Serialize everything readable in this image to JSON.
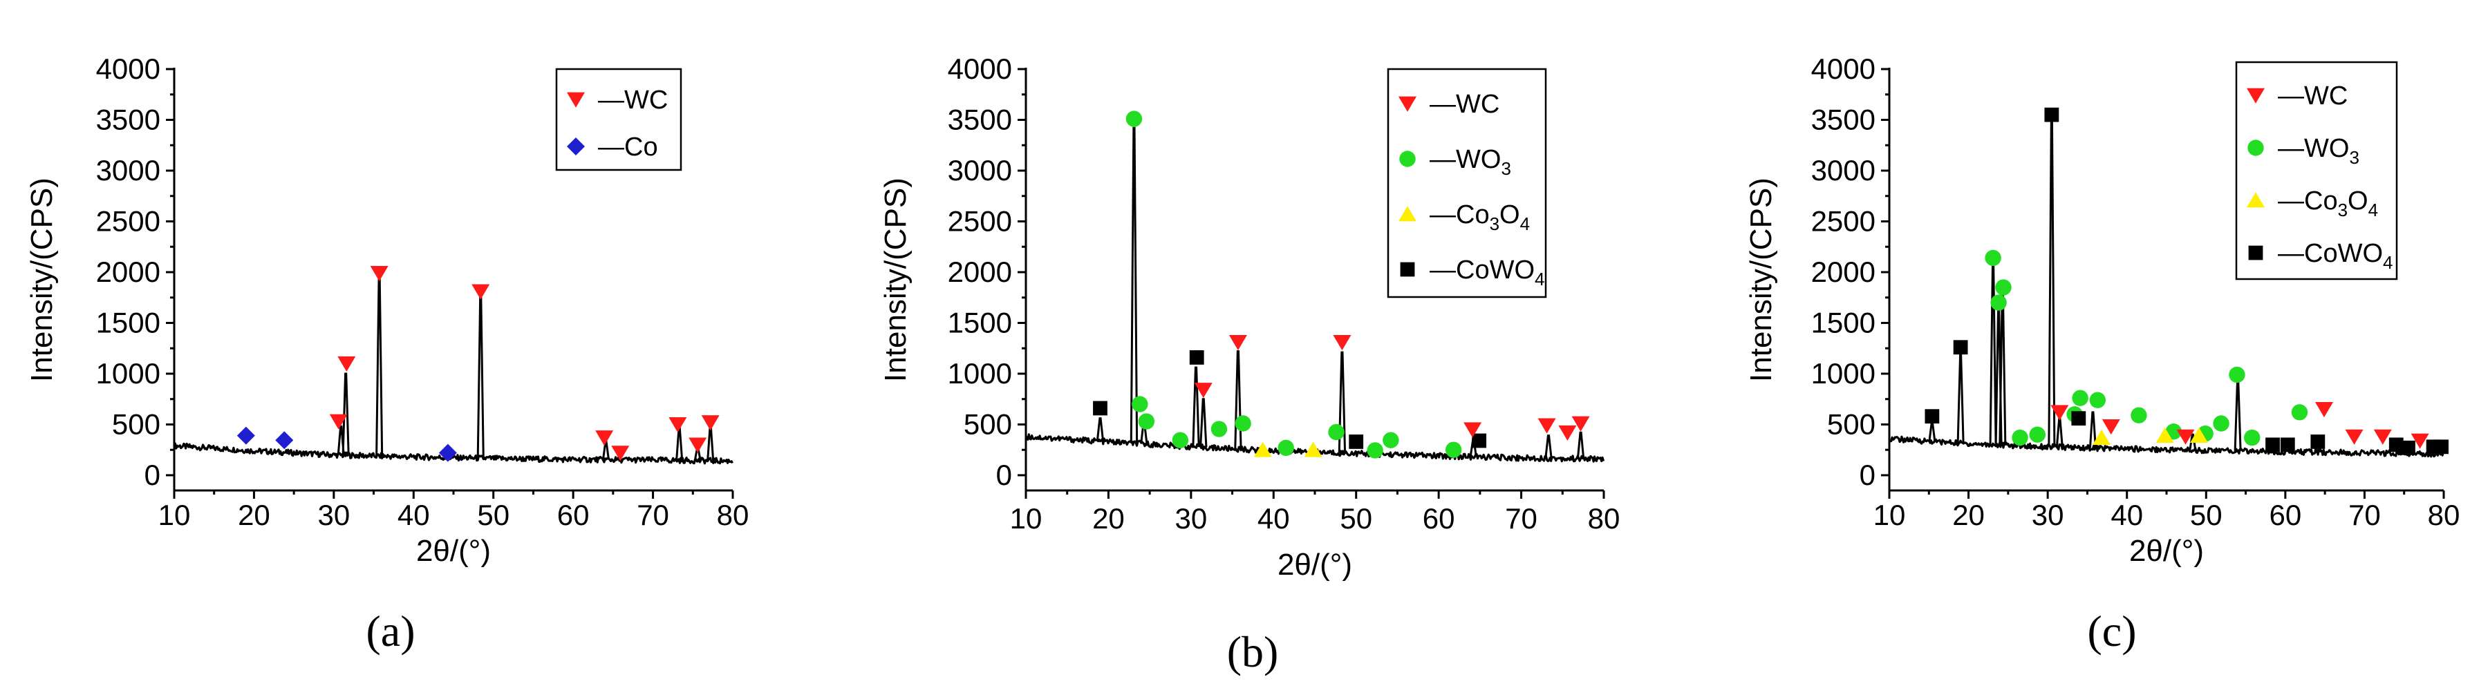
{
  "figure": {
    "panels": [
      {
        "id": "a",
        "label_text": "(a)",
        "legend": [
          {
            "label": "WC",
            "marker": "triangle-down",
            "color": "#ff1a1a"
          },
          {
            "label": "Co",
            "marker": "diamond",
            "color": "#1f1fd0"
          }
        ]
      },
      {
        "id": "b",
        "label_text": "(b)",
        "legend": [
          {
            "label": "WC",
            "marker": "triangle-down",
            "color": "#ff1a1a"
          },
          {
            "label": "WO",
            "sub": "3",
            "marker": "circle",
            "color": "#22dd22"
          },
          {
            "label": "Co",
            "sub": "3",
            "label2": "O",
            "sub2": "4",
            "marker": "triangle-up",
            "color": "#ffee00"
          },
          {
            "label": "CoWO",
            "sub": "4",
            "marker": "square",
            "color": "#000000"
          }
        ]
      },
      {
        "id": "c",
        "label_text": "(c)",
        "legend": [
          {
            "label": "WC",
            "marker": "triangle-down",
            "color": "#ff1a1a"
          },
          {
            "label": "WO",
            "sub": "3",
            "marker": "circle",
            "color": "#22dd22"
          },
          {
            "label": "Co",
            "sub": "3",
            "label2": "O",
            "sub2": "4",
            "marker": "triangle-up",
            "color": "#ffee00"
          },
          {
            "label": "CoWO",
            "sub": "4",
            "marker": "square",
            "color": "#000000"
          }
        ]
      }
    ]
  },
  "chart_data": [
    {
      "type": "line",
      "panel": "a",
      "xlabel": "2θ/(°)",
      "ylabel": "Intensity/(CPS)",
      "xlim": [
        10,
        80
      ],
      "ylim": [
        -150,
        4000
      ],
      "xticks": [
        10,
        20,
        30,
        40,
        50,
        60,
        70,
        80
      ],
      "yticks": [
        0,
        500,
        1000,
        1500,
        2000,
        2500,
        3000,
        3500,
        4000
      ],
      "baseline": [
        [
          10,
          290
        ],
        [
          20,
          240
        ],
        [
          30,
          200
        ],
        [
          40,
          180
        ],
        [
          50,
          165
        ],
        [
          60,
          155
        ],
        [
          70,
          150
        ],
        [
          80,
          140
        ]
      ],
      "peaks": [
        [
          30.9,
          480
        ],
        [
          31.5,
          1000
        ],
        [
          35.7,
          1940
        ],
        [
          48.4,
          1760
        ],
        [
          64.1,
          330
        ],
        [
          73.3,
          470
        ],
        [
          75.6,
          270
        ],
        [
          77.2,
          480
        ]
      ],
      "markers": [
        {
          "x": 19.0,
          "y": 390,
          "phase": "Co"
        },
        {
          "x": 23.8,
          "y": 345,
          "phase": "Co"
        },
        {
          "x": 44.3,
          "y": 220,
          "phase": "Co"
        },
        {
          "x": 30.6,
          "y": 530,
          "phase": "WC"
        },
        {
          "x": 31.6,
          "y": 1100,
          "phase": "WC"
        },
        {
          "x": 35.7,
          "y": 1990,
          "phase": "WC"
        },
        {
          "x": 48.4,
          "y": 1810,
          "phase": "WC"
        },
        {
          "x": 63.9,
          "y": 370,
          "phase": "WC"
        },
        {
          "x": 65.9,
          "y": 220,
          "phase": "WC"
        },
        {
          "x": 73.1,
          "y": 500,
          "phase": "WC"
        },
        {
          "x": 75.6,
          "y": 300,
          "phase": "WC"
        },
        {
          "x": 77.2,
          "y": 520,
          "phase": "WC"
        }
      ]
    },
    {
      "type": "line",
      "panel": "b",
      "xlabel": "2θ/(°)",
      "ylabel": "Intensity/(CPS)",
      "xlim": [
        10,
        80
      ],
      "ylim": [
        -150,
        4000
      ],
      "xticks": [
        10,
        20,
        30,
        40,
        50,
        60,
        70,
        80
      ],
      "yticks": [
        0,
        500,
        1000,
        1500,
        2000,
        2500,
        3000,
        3500,
        4000
      ],
      "baseline": [
        [
          10,
          380
        ],
        [
          20,
          330
        ],
        [
          30,
          280
        ],
        [
          40,
          240
        ],
        [
          50,
          215
        ],
        [
          60,
          190
        ],
        [
          70,
          170
        ],
        [
          80,
          160
        ]
      ],
      "peaks": [
        [
          19.0,
          560
        ],
        [
          23.1,
          3420
        ],
        [
          24.3,
          520
        ],
        [
          30.6,
          1060
        ],
        [
          31.5,
          750
        ],
        [
          35.7,
          1220
        ],
        [
          48.3,
          1210
        ],
        [
          64.2,
          350
        ],
        [
          73.3,
          390
        ],
        [
          77.2,
          420
        ]
      ],
      "markers": [
        {
          "x": 23.1,
          "y": 3510,
          "phase": "WO3"
        },
        {
          "x": 23.8,
          "y": 700,
          "phase": "WO3"
        },
        {
          "x": 24.6,
          "y": 530,
          "phase": "WO3"
        },
        {
          "x": 28.7,
          "y": 345,
          "phase": "WO3"
        },
        {
          "x": 33.4,
          "y": 455,
          "phase": "WO3"
        },
        {
          "x": 36.3,
          "y": 510,
          "phase": "WO3"
        },
        {
          "x": 41.5,
          "y": 270,
          "phase": "WO3"
        },
        {
          "x": 47.6,
          "y": 425,
          "phase": "WO3"
        },
        {
          "x": 52.3,
          "y": 245,
          "phase": "WO3"
        },
        {
          "x": 54.2,
          "y": 345,
          "phase": "WO3"
        },
        {
          "x": 61.8,
          "y": 250,
          "phase": "WO3"
        },
        {
          "x": 38.7,
          "y": 250,
          "phase": "Co3O4"
        },
        {
          "x": 44.8,
          "y": 250,
          "phase": "Co3O4"
        },
        {
          "x": 19.0,
          "y": 660,
          "phase": "CoWO4"
        },
        {
          "x": 30.7,
          "y": 1160,
          "phase": "CoWO4"
        },
        {
          "x": 50.0,
          "y": 330,
          "phase": "CoWO4"
        },
        {
          "x": 64.9,
          "y": 340,
          "phase": "CoWO4"
        },
        {
          "x": 31.5,
          "y": 840,
          "phase": "WC"
        },
        {
          "x": 35.7,
          "y": 1310,
          "phase": "WC"
        },
        {
          "x": 48.3,
          "y": 1310,
          "phase": "WC"
        },
        {
          "x": 64.1,
          "y": 450,
          "phase": "WC"
        },
        {
          "x": 73.1,
          "y": 490,
          "phase": "WC"
        },
        {
          "x": 75.6,
          "y": 420,
          "phase": "WC"
        },
        {
          "x": 77.2,
          "y": 510,
          "phase": "WC"
        }
      ]
    },
    {
      "type": "line",
      "panel": "c",
      "xlabel": "2θ/(°)",
      "ylabel": "Intensity/(CPS)",
      "xlim": [
        10,
        80
      ],
      "ylim": [
        -150,
        4000
      ],
      "xticks": [
        10,
        20,
        30,
        40,
        50,
        60,
        70,
        80
      ],
      "yticks": [
        0,
        500,
        1000,
        1500,
        2000,
        2500,
        3000,
        3500,
        4000
      ],
      "baseline": [
        [
          10,
          360
        ],
        [
          20,
          310
        ],
        [
          30,
          280
        ],
        [
          40,
          260
        ],
        [
          50,
          245
        ],
        [
          60,
          230
        ],
        [
          70,
          220
        ],
        [
          80,
          210
        ]
      ],
      "peaks": [
        [
          15.4,
          520
        ],
        [
          19.0,
          1180
        ],
        [
          23.1,
          2080
        ],
        [
          23.8,
          1640
        ],
        [
          24.3,
          1780
        ],
        [
          30.5,
          3480
        ],
        [
          31.5,
          560
        ],
        [
          35.7,
          620
        ],
        [
          48.3,
          400
        ],
        [
          54.0,
          940
        ],
        [
          64.1,
          390
        ]
      ],
      "markers": [
        {
          "x": 23.1,
          "y": 2140,
          "phase": "WO3"
        },
        {
          "x": 23.8,
          "y": 1700,
          "phase": "WO3"
        },
        {
          "x": 24.4,
          "y": 1850,
          "phase": "WO3"
        },
        {
          "x": 26.5,
          "y": 370,
          "phase": "WO3"
        },
        {
          "x": 28.7,
          "y": 400,
          "phase": "WO3"
        },
        {
          "x": 33.4,
          "y": 600,
          "phase": "WO3"
        },
        {
          "x": 34.1,
          "y": 760,
          "phase": "WO3"
        },
        {
          "x": 36.3,
          "y": 740,
          "phase": "WO3"
        },
        {
          "x": 41.5,
          "y": 590,
          "phase": "WO3"
        },
        {
          "x": 45.9,
          "y": 430,
          "phase": "WO3"
        },
        {
          "x": 49.9,
          "y": 410,
          "phase": "WO3"
        },
        {
          "x": 51.9,
          "y": 510,
          "phase": "WO3"
        },
        {
          "x": 53.9,
          "y": 990,
          "phase": "WO3"
        },
        {
          "x": 55.8,
          "y": 370,
          "phase": "WO3"
        },
        {
          "x": 61.8,
          "y": 620,
          "phase": "WO3"
        },
        {
          "x": 36.8,
          "y": 370,
          "phase": "Co3O4"
        },
        {
          "x": 44.8,
          "y": 390,
          "phase": "Co3O4"
        },
        {
          "x": 49.1,
          "y": 390,
          "phase": "Co3O4"
        },
        {
          "x": 15.4,
          "y": 580,
          "phase": "CoWO4"
        },
        {
          "x": 19.0,
          "y": 1260,
          "phase": "CoWO4"
        },
        {
          "x": 30.5,
          "y": 3550,
          "phase": "CoWO4"
        },
        {
          "x": 33.9,
          "y": 560,
          "phase": "CoWO4"
        },
        {
          "x": 58.4,
          "y": 300,
          "phase": "CoWO4"
        },
        {
          "x": 60.3,
          "y": 300,
          "phase": "CoWO4"
        },
        {
          "x": 64.1,
          "y": 330,
          "phase": "CoWO4"
        },
        {
          "x": 74.0,
          "y": 300,
          "phase": "CoWO4"
        },
        {
          "x": 75.5,
          "y": 270,
          "phase": "CoWO4"
        },
        {
          "x": 78.7,
          "y": 280,
          "phase": "CoWO4"
        },
        {
          "x": 79.7,
          "y": 280,
          "phase": "CoWO4"
        },
        {
          "x": 31.5,
          "y": 620,
          "phase": "WC"
        },
        {
          "x": 38.0,
          "y": 480,
          "phase": "WC"
        },
        {
          "x": 47.4,
          "y": 380,
          "phase": "WC"
        },
        {
          "x": 64.9,
          "y": 650,
          "phase": "WC"
        },
        {
          "x": 68.7,
          "y": 380,
          "phase": "WC"
        },
        {
          "x": 72.3,
          "y": 380,
          "phase": "WC"
        },
        {
          "x": 77.0,
          "y": 340,
          "phase": "WC"
        }
      ]
    }
  ]
}
